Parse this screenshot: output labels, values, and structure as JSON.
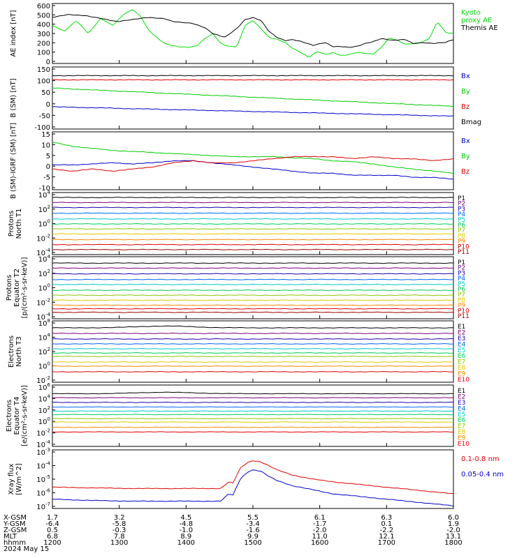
{
  "chart_data": [
    {
      "type": "line",
      "ylabel": "AE index [nT]",
      "yticks": [
        "600",
        "500",
        "400",
        "300",
        "200",
        "100",
        "0"
      ],
      "ylim": [
        0,
        600
      ],
      "series": [
        {
          "name": "Kyoto proxy AE",
          "color": "#00e000",
          "legend": [
            "Kyoto",
            "proxy AE"
          ],
          "t": [
            0,
            0.03,
            0.06,
            0.09,
            0.12,
            0.15,
            0.18,
            0.2,
            0.22,
            0.24,
            0.26,
            0.28,
            0.3,
            0.32,
            0.34,
            0.36,
            0.38,
            0.4,
            0.42,
            0.44,
            0.46,
            0.48,
            0.5,
            0.52,
            0.54,
            0.56,
            0.58,
            0.6,
            0.62,
            0.64,
            0.66,
            0.68,
            0.7,
            0.72,
            0.74,
            0.76,
            0.78,
            0.8,
            0.82,
            0.84,
            0.86,
            0.88,
            0.9,
            0.92,
            0.94,
            0.96,
            0.98,
            1
          ],
          "v": [
            380,
            320,
            430,
            300,
            450,
            380,
            500,
            540,
            470,
            330,
            260,
            200,
            180,
            165,
            160,
            175,
            250,
            300,
            200,
            170,
            165,
            380,
            430,
            350,
            260,
            240,
            210,
            150,
            110,
            60,
            120,
            90,
            110,
            80,
            90,
            110,
            100,
            95,
            160,
            260,
            230,
            190,
            200,
            210,
            250,
            420,
            310,
            300
          ]
        },
        {
          "name": "Themis AE",
          "color": "#000000",
          "legend": [
            "Themis AE"
          ],
          "t": [
            0,
            0.04,
            0.08,
            0.12,
            0.16,
            0.2,
            0.24,
            0.28,
            0.3,
            0.32,
            0.35,
            0.38,
            0.4,
            0.43,
            0.46,
            0.48,
            0.5,
            0.52,
            0.54,
            0.56,
            0.58,
            0.6,
            0.62,
            0.65,
            0.68,
            0.7,
            0.72,
            0.74,
            0.76,
            0.78,
            0.8,
            0.82,
            0.85,
            0.88,
            0.9,
            0.92,
            0.95,
            0.98,
            1
          ],
          "v": [
            460,
            490,
            480,
            450,
            420,
            440,
            460,
            450,
            420,
            410,
            400,
            360,
            300,
            260,
            350,
            440,
            460,
            430,
            320,
            260,
            230,
            240,
            220,
            180,
            210,
            170,
            170,
            160,
            170,
            200,
            220,
            250,
            230,
            240,
            200,
            210,
            200,
            210,
            240
          ]
        }
      ]
    },
    {
      "type": "line",
      "ylabel": "B (SM) [nT]",
      "yticks": [
        "150",
        "100",
        "50",
        "0",
        "-50",
        "-100"
      ],
      "ylim": [
        -115,
        150
      ],
      "series": [
        {
          "name": "Bx",
          "color": "#0000cc",
          "t": [
            0,
            1
          ],
          "v": [
            -20,
            -60
          ]
        },
        {
          "name": "By",
          "color": "#00cc00",
          "t": [
            0,
            1
          ],
          "v": [
            60,
            -18
          ]
        },
        {
          "name": "Bz",
          "color": "#dd0000",
          "t": [
            0,
            1
          ],
          "v": [
            95,
            95
          ]
        },
        {
          "name": "Bmag",
          "color": "#000000",
          "t": [
            0,
            1
          ],
          "v": [
            113,
            113
          ]
        }
      ]
    },
    {
      "type": "line",
      "ylabel": "B (SM)-IGRF (SM) [nT]",
      "yticks": [
        "15",
        "10",
        "5",
        "0",
        "-5",
        "-10"
      ],
      "ylim": [
        -11,
        17
      ],
      "series": [
        {
          "name": "Bx",
          "color": "#0000cc",
          "t": [
            0,
            0.05,
            0.1,
            0.15,
            0.2,
            0.25,
            0.3,
            0.35,
            0.4,
            0.45,
            0.5,
            0.55,
            0.6,
            0.65,
            0.7,
            0.75,
            0.8,
            0.85,
            0.9,
            0.95,
            1
          ],
          "v": [
            1,
            1,
            1.5,
            2,
            1.5,
            2,
            3,
            3,
            2,
            1,
            0,
            -1,
            -2,
            -3,
            -3,
            -4,
            -4,
            -4,
            -5,
            -5,
            -6
          ]
        },
        {
          "name": "By",
          "color": "#00cc00",
          "t": [
            0,
            0.05,
            0.1,
            0.15,
            0.2,
            0.25,
            0.3,
            0.35,
            0.4,
            0.45,
            0.5,
            0.55,
            0.6,
            0.65,
            0.7,
            0.75,
            0.8,
            0.85,
            0.9,
            0.95,
            1
          ],
          "v": [
            12,
            10,
            9,
            8,
            7.5,
            7,
            6.5,
            6,
            5.5,
            5,
            5,
            5,
            4.5,
            4,
            3,
            2.5,
            1.5,
            0,
            -1,
            -2,
            -3
          ]
        },
        {
          "name": "Bz",
          "color": "#dd0000",
          "t": [
            0,
            0.05,
            0.1,
            0.15,
            0.2,
            0.25,
            0.3,
            0.35,
            0.4,
            0.45,
            0.5,
            0.55,
            0.6,
            0.65,
            0.7,
            0.75,
            0.8,
            0.85,
            0.9,
            0.95,
            1
          ],
          "v": [
            -1,
            -2,
            -1,
            -2,
            -1,
            0,
            2,
            3,
            2,
            2,
            3,
            4,
            5,
            5,
            5,
            4,
            5,
            4,
            4,
            3,
            4
          ]
        }
      ]
    },
    {
      "type": "line",
      "log": true,
      "ylabel": [
        "Protons",
        "North T1"
      ],
      "yticks": [
        "10^4",
        "10^2",
        "10^0",
        "10^-2",
        "10^-4"
      ],
      "ylim": [
        -4.5,
        4.2
      ],
      "channels": [
        "P1",
        "P2",
        "P3",
        "P4",
        "P5",
        "P6",
        "P7",
        "P8",
        "P9",
        "P10",
        "P11"
      ],
      "levels": [
        3.5,
        2.8,
        2.1,
        1.3,
        0.5,
        -0.2,
        -0.9,
        -1.6,
        -2.4,
        -3.1,
        -3.8
      ],
      "colors": [
        "#000000",
        "#7a007a",
        "#1a00b0",
        "#0066ff",
        "#00c8c8",
        "#00cc55",
        "#8ec800",
        "#e0c800",
        "#ff8800",
        "#dd0000",
        "#990000"
      ]
    },
    {
      "type": "line",
      "log": true,
      "ylabel": [
        "Protons",
        "Equator T2",
        "[p/(cm²-s-sr-keV)]"
      ],
      "yticks": [
        "10^4",
        "10^2",
        "10^0",
        "10^-2",
        "10^-4"
      ],
      "ylim": [
        -4.5,
        4.2
      ],
      "channels": [
        "P1",
        "P2",
        "P3",
        "P4",
        "P5",
        "P6",
        "P7",
        "P8",
        "P9",
        "P10",
        "P11"
      ],
      "levels": [
        3.3,
        2.6,
        1.8,
        1.0,
        0.3,
        -0.5,
        -1.2,
        -1.9,
        -2.6,
        -3.1,
        -3.6
      ],
      "colors": [
        "#000000",
        "#7a007a",
        "#1a00b0",
        "#0066ff",
        "#00c8c8",
        "#00cc55",
        "#8ec800",
        "#e0c800",
        "#ff8800",
        "#dd0000",
        "#990000"
      ]
    },
    {
      "type": "line",
      "log": true,
      "ylabel": [
        "Electrons",
        "North T3"
      ],
      "yticks": [
        "10^8",
        "10^4",
        "10^2",
        "10^0",
        "10^-2"
      ],
      "ylim": [
        -2.5,
        6.3
      ],
      "channels": [
        "E1",
        "E2",
        "E3",
        "E4",
        "E5",
        "E6",
        "E7",
        "E8",
        "E9",
        "E10"
      ],
      "levels": [
        5.3,
        4.5,
        3.7,
        3.0,
        2.3,
        1.7,
        1.2,
        0.4,
        -0.2,
        -1.0
      ],
      "colors": [
        "#000000",
        "#7a007a",
        "#1a00b0",
        "#0066ff",
        "#00c8c8",
        "#00cc55",
        "#8ec800",
        "#e0c800",
        "#ff8800",
        "#dd0000"
      ]
    },
    {
      "type": "line",
      "log": true,
      "ylabel": [
        "Electrons",
        "Equator T4",
        "[e/(cm²-s-sr-keV)]"
      ],
      "yticks": [
        "10^6",
        "10^4",
        "10^2",
        "10^0",
        "10^-2",
        "10^-4"
      ],
      "ylim": [
        -4.3,
        6.3
      ],
      "channels": [
        "E1",
        "E2",
        "E3",
        "E4",
        "E5",
        "E6",
        "E7",
        "E8",
        "E9",
        "E10"
      ],
      "levels": [
        4.8,
        4.1,
        3.3,
        2.5,
        1.8,
        1.2,
        0.5,
        -0.1,
        -1.0,
        -1.8
      ],
      "colors": [
        "#000000",
        "#7a007a",
        "#1a00b0",
        "#0066ff",
        "#00c8c8",
        "#00cc55",
        "#8ec800",
        "#e0c800",
        "#ff8800",
        "#dd0000"
      ]
    },
    {
      "type": "line",
      "log": true,
      "ylabel": [
        "Xray flux",
        "[W/m^2]"
      ],
      "yticks": [
        "10^-3",
        "10^-4",
        "10^-5",
        "10^-6",
        "10^-7"
      ],
      "ylim": [
        -7.4,
        -3.0
      ],
      "series": [
        {
          "name": "0.1-0.8 nm",
          "color": "#dd0000",
          "t": [
            0,
            0.1,
            0.2,
            0.3,
            0.38,
            0.42,
            0.44,
            0.45,
            0.47,
            0.49,
            0.5,
            0.52,
            0.54,
            0.56,
            0.58,
            0.6,
            0.65,
            0.7,
            0.8,
            0.9,
            1
          ],
          "v": [
            -5.8,
            -5.85,
            -5.9,
            -5.9,
            -5.9,
            -5.9,
            -5.4,
            -5.5,
            -4.3,
            -3.9,
            -3.8,
            -3.9,
            -4.2,
            -4.5,
            -4.7,
            -4.9,
            -5.2,
            -5.4,
            -5.7,
            -6.0,
            -6.3
          ]
        },
        {
          "name": "0.05-0.4 nm",
          "color": "#0000cc",
          "t": [
            0,
            0.1,
            0.2,
            0.3,
            0.38,
            0.42,
            0.44,
            0.45,
            0.47,
            0.49,
            0.5,
            0.52,
            0.54,
            0.56,
            0.58,
            0.6,
            0.65,
            0.7,
            0.8,
            0.9,
            1
          ],
          "v": [
            -6.7,
            -6.8,
            -6.85,
            -6.85,
            -6.85,
            -6.85,
            -6.3,
            -6.4,
            -5.1,
            -4.6,
            -4.5,
            -4.6,
            -5.0,
            -5.3,
            -5.5,
            -5.7,
            -6.0,
            -6.3,
            -6.6,
            -6.9,
            -7.2
          ]
        }
      ]
    }
  ],
  "footer": {
    "row_labels": [
      "X-GSM",
      "Y-GSM",
      "Z-GSM",
      "MLT",
      "hhmm"
    ],
    "date": "2024 May 15",
    "columns": [
      [
        "1.7",
        "-6.4",
        "0.5",
        "6.8",
        "1200"
      ],
      [
        "3.2",
        "-5.8",
        "-0.3",
        "7.8",
        "1300"
      ],
      [
        "4.5",
        "-4.8",
        "-1.0",
        "8.9",
        "1400"
      ],
      [
        "5.5",
        "-3.4",
        "-1.6",
        "9.9",
        "1500"
      ],
      [
        "6.1",
        "-1.7",
        "-2.0",
        "11.0",
        "1600"
      ],
      [
        "6.3",
        "0.1",
        "-2.2",
        "12.1",
        "1700"
      ],
      [
        "6.0",
        "1.9",
        "-2.0",
        "13.1",
        "1800"
      ]
    ]
  }
}
